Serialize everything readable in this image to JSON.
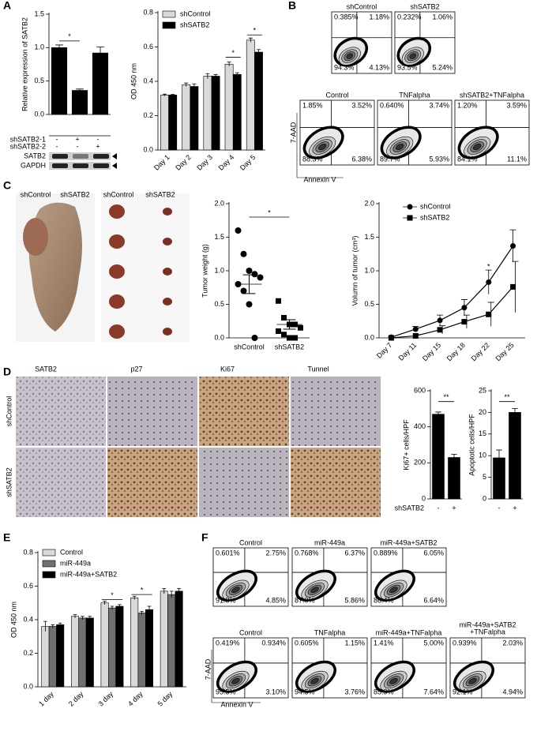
{
  "panel_labels": [
    "A",
    "B",
    "C",
    "D",
    "E",
    "F"
  ],
  "blot": {
    "rows": [
      {
        "label": "shSATB2-1",
        "marks": [
          "-",
          "+",
          "-"
        ]
      },
      {
        "label": "shSATB2-2",
        "marks": [
          "-",
          "-",
          "+"
        ]
      }
    ],
    "bands": [
      "SATB2",
      "GAPDH"
    ]
  },
  "flow_B": {
    "axis_x": "Annexin V",
    "axis_y": "7-AAD",
    "plots": [
      {
        "title": "shControl",
        "q": [
          "0.385%",
          "1.18%",
          "94.3%",
          "4.13%"
        ]
      },
      {
        "title": "shSATB2",
        "q": [
          "0.232%",
          "1.06%",
          "93.5%",
          "5.24%"
        ]
      },
      {
        "title": "Control",
        "q": [
          "1.85%",
          "3.52%",
          "88.3%",
          "6.38%"
        ]
      },
      {
        "title": "TNFalpha",
        "q": [
          "0.640%",
          "3.74%",
          "89.7%",
          "5.93%"
        ]
      },
      {
        "title": "shSATB2+TNFalpha",
        "q": [
          "1.20%",
          "3.59%",
          "84.1%",
          "11.1%"
        ]
      }
    ]
  },
  "photos_C": [
    "shControl",
    "shSATB2",
    "shControl",
    "shSATB2"
  ],
  "ihc": {
    "columns": [
      "SATB2",
      "p27",
      "Ki67",
      "Tunnel"
    ],
    "rows": [
      "shControl",
      "shSATB2"
    ]
  },
  "flow_F": {
    "axis_x": "Annexin V",
    "axis_y": "7-AAD",
    "plots": [
      {
        "title": "Control",
        "q": [
          "0.601%",
          "2.75%",
          "91.8%",
          "4.85%"
        ]
      },
      {
        "title": "miR-449a",
        "q": [
          "0.768%",
          "6.37%",
          "87.0%",
          "5.86%"
        ]
      },
      {
        "title": "miR-449a+SATB2",
        "q": [
          "0.889%",
          "6.05%",
          "86.4%",
          "6.64%"
        ]
      },
      {
        "title": "Control",
        "q": [
          "0.419%",
          "0.934%",
          "95.5%",
          "3.10%"
        ]
      },
      {
        "title": "TNFalpha",
        "q": [
          "0.605%",
          "1.15%",
          "94.5%",
          "3.76%"
        ]
      },
      {
        "title": "miR-449a+TNFalpha",
        "q": [
          "1.41%",
          "5.00%",
          "85.9%",
          "7.64%"
        ]
      },
      {
        "title": [
          "miR-449a+SATB2",
          "+TNFalpha"
        ],
        "q": [
          "0.939%",
          "2.03%",
          "92.1%",
          "4.94%"
        ]
      }
    ]
  },
  "chart_data": [
    {
      "type": "bar",
      "ylabel": "Relative expression of SATB2",
      "categories": [
        null,
        null,
        null
      ],
      "values": [
        1.0,
        0.36,
        0.92
      ],
      "errors": [
        0.04,
        0.02,
        0.09
      ],
      "color": "#000000",
      "ylim": [
        0,
        1.5
      ],
      "yticks": [
        {
          "value": 0,
          "label": "0.0"
        },
        0.5,
        {
          "value": 1,
          "label": "1.0"
        },
        1.5
      ],
      "annotations": [
        "*"
      ]
    },
    {
      "type": "bar",
      "ylabel": "OD 450 nm",
      "categories": [
        "Day 1",
        "Day 2",
        "Day 3",
        "Day 4",
        "Day 5"
      ],
      "series": [
        {
          "name": "shControl",
          "color": "#d9d9d9",
          "values": [
            0.32,
            0.38,
            0.43,
            0.5,
            0.64
          ],
          "errors": [
            0.005,
            0.01,
            0.015,
            0.012,
            0.012
          ]
        },
        {
          "name": "shSATB2",
          "color": "#000000",
          "values": [
            0.32,
            0.37,
            0.43,
            0.44,
            0.57
          ],
          "errors": [
            0.004,
            0.015,
            0.01,
            0.01,
            0.015
          ]
        }
      ],
      "ylim": [
        0,
        0.8
      ],
      "yticks": [
        {
          "value": 0,
          "label": "0.0"
        },
        0.2,
        0.4,
        0.6,
        0.8
      ],
      "annotations": [
        "*",
        "*"
      ]
    },
    {
      "type": "dot",
      "ylabel": "Tumor weight (g)",
      "categories": [
        "shControl",
        "shSATB2"
      ],
      "points": [
        [
          1.6,
          1.25,
          1.0,
          0.95,
          0.9,
          0.8,
          0.7,
          0.5,
          0.0
        ],
        [
          0.55,
          0.3,
          0.2,
          0.2,
          0.15,
          0.1,
          0.05,
          0.0,
          0.0
        ]
      ],
      "means": [
        0.8,
        0.2
      ],
      "errors": [
        0.14,
        0.07
      ],
      "ylim": [
        0,
        2
      ],
      "yticks": [
        {
          "value": 0,
          "label": "0.0"
        },
        0.5,
        {
          "value": 1,
          "label": "1.0"
        },
        1.5,
        {
          "value": 2,
          "label": "2.0"
        }
      ],
      "annotations": [
        "*"
      ]
    },
    {
      "type": "line",
      "ylabel": "Volumn of tumor (cm³)",
      "categories": [
        "Day 7",
        "Day 11",
        "Day 15",
        "Day 18",
        "Day 22",
        "Day 25"
      ],
      "series": [
        {
          "name": "shControl",
          "color": "#000000",
          "values": [
            0.01,
            0.13,
            0.26,
            0.45,
            0.83,
            1.37
          ],
          "errors": [
            0.01,
            0.04,
            0.08,
            0.12,
            0.18,
            0.24
          ]
        },
        {
          "name": "shSATB2",
          "color": "#000000",
          "values": [
            0.0,
            0.03,
            0.12,
            0.24,
            0.35,
            0.76
          ],
          "errors": [
            0.0,
            0.02,
            0.06,
            0.1,
            0.18,
            0.38
          ]
        }
      ],
      "ylim": [
        0,
        2
      ],
      "yticks": [
        {
          "value": 0,
          "label": "0.0"
        },
        0.5,
        {
          "value": 1,
          "label": "1.0"
        },
        1.5,
        {
          "value": 2,
          "label": "2.0"
        }
      ],
      "annotations": [
        "*"
      ]
    },
    {
      "type": "bar",
      "ylabel": "Ki67+ cells/HPF",
      "xlabel": "shSATB2",
      "categories": [
        "-",
        "+"
      ],
      "values": [
        470,
        230
      ],
      "errors": [
        12,
        18
      ],
      "color": "#000000",
      "ylim": [
        0,
        600
      ],
      "yticks": [
        0,
        200,
        400,
        600
      ],
      "annotations": [
        "**"
      ]
    },
    {
      "type": "bar",
      "ylabel": "Apoptotic cells/HPF",
      "categories": [
        "-",
        "+"
      ],
      "values": [
        9.5,
        20
      ],
      "errors": [
        1.8,
        0.9
      ],
      "color": "#000000",
      "ylim": [
        0,
        25
      ],
      "yticks": [
        0,
        5,
        10,
        15,
        20,
        25
      ],
      "annotations": [
        "**"
      ]
    },
    {
      "type": "bar",
      "ylabel": "OD 450 nm",
      "categories": [
        "1 day",
        "2 day",
        "3 day",
        "4 day",
        "5 day"
      ],
      "series": [
        {
          "name": "Control",
          "color": "#d9d9d9",
          "values": [
            0.36,
            0.42,
            0.5,
            0.53,
            0.57
          ],
          "errors": [
            0.03,
            0.01,
            0.01,
            0.01,
            0.015
          ]
        },
        {
          "name": "miR-449a",
          "color": "#707070",
          "values": [
            0.36,
            0.41,
            0.47,
            0.44,
            0.55
          ],
          "errors": [
            0.01,
            0.01,
            0.01,
            0.01,
            0.02
          ]
        },
        {
          "name": "miR-449a+SATB2",
          "color": "#000000",
          "values": [
            0.37,
            0.41,
            0.48,
            0.46,
            0.57
          ],
          "errors": [
            0.01,
            0.01,
            0.01,
            0.02,
            0.015
          ]
        }
      ],
      "ylim": [
        0,
        0.8
      ],
      "yticks": [
        {
          "value": 0,
          "label": "0.0"
        },
        0.2,
        0.4,
        0.6,
        0.8
      ],
      "annotations": [
        "*",
        "*"
      ]
    }
  ]
}
